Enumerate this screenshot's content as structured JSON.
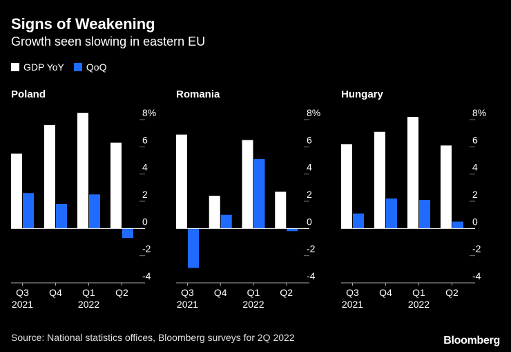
{
  "title": "Signs of Weakening",
  "subtitle": "Growth seen slowing in eastern EU",
  "legend": [
    {
      "label": "GDP YoY",
      "color": "#ffffff"
    },
    {
      "label": "QoQ",
      "color": "#1f6bff"
    }
  ],
  "source": "Source: National statistics offices, Bloomberg surveys for 2Q 2022",
  "logo": "Bloomberg",
  "chart_data": [
    {
      "type": "bar",
      "title": "Poland",
      "categories": [
        "Q3",
        "Q4",
        "Q1",
        "Q2"
      ],
      "category_years": [
        "2021",
        "",
        "2022",
        ""
      ],
      "series": [
        {
          "name": "GDP YoY",
          "values": [
            5.5,
            7.6,
            8.5,
            6.3
          ]
        },
        {
          "name": "QoQ",
          "values": [
            2.6,
            1.8,
            2.5,
            -0.7
          ]
        }
      ],
      "ylim": [
        -4,
        8
      ],
      "yticks": [
        "8%",
        "6",
        "4",
        "2",
        "0",
        "-2",
        "-4"
      ]
    },
    {
      "type": "bar",
      "title": "Romania",
      "categories": [
        "Q3",
        "Q4",
        "Q1",
        "Q2"
      ],
      "category_years": [
        "2021",
        "",
        "2022",
        ""
      ],
      "series": [
        {
          "name": "GDP YoY",
          "values": [
            6.9,
            2.4,
            6.5,
            2.7
          ]
        },
        {
          "name": "QoQ",
          "values": [
            -2.9,
            1.0,
            5.1,
            -0.2
          ]
        }
      ],
      "ylim": [
        -4,
        8
      ],
      "yticks": [
        "8%",
        "6",
        "4",
        "2",
        "0",
        "-2",
        "-4"
      ]
    },
    {
      "type": "bar",
      "title": "Hungary",
      "categories": [
        "Q3",
        "Q4",
        "Q1",
        "Q2"
      ],
      "category_years": [
        "2021",
        "",
        "2022",
        ""
      ],
      "series": [
        {
          "name": "GDP YoY",
          "values": [
            6.2,
            7.1,
            8.2,
            6.1
          ]
        },
        {
          "name": "QoQ",
          "values": [
            1.1,
            2.2,
            2.1,
            0.5
          ]
        }
      ],
      "ylim": [
        -4,
        8
      ],
      "yticks": [
        "8%",
        "6",
        "4",
        "2",
        "0",
        "-2",
        "-4"
      ]
    }
  ]
}
